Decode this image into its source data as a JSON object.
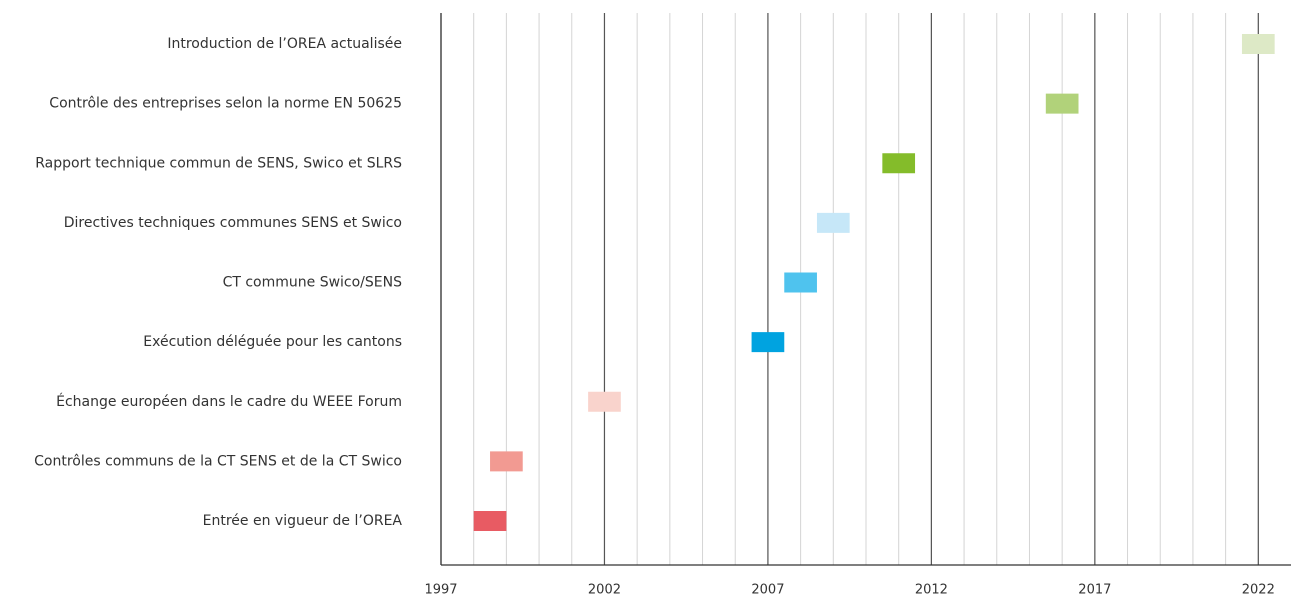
{
  "chart_data": {
    "type": "timeline",
    "categories": [
      "Introduction de l’OREA actualisée",
      "Contrôle des entreprises selon la norme EN 50625",
      "Rapport technique commun de SENS, Swico et SLRS",
      "Directives techniques communes SENS et Swico",
      "CT commune Swico/SENS",
      "Exécution déléguée pour les cantons",
      "Échange européen dans le cadre du WEEE Forum",
      "Contrôles communs de la CT SENS et de la CT Swico",
      "Entrée en vigueur de l’OREA"
    ],
    "start": [
      2021.5,
      2015.5,
      2010.5,
      2008.5,
      2007.5,
      2006.5,
      2001.5,
      1998.5,
      1998
    ],
    "end": [
      2022.5,
      2016.5,
      2011.5,
      2009.5,
      2008.5,
      2007.5,
      2002.5,
      1999.5,
      1999
    ],
    "colors": [
      "#dde9c6",
      "#b1d27a",
      "#84bc2a",
      "#c6e7f8",
      "#4fc3ee",
      "#00a3e0",
      "#f9d3cc",
      "#f29a92",
      "#e85b63"
    ],
    "xlim": [
      1997,
      2023
    ],
    "xticks": [
      1997,
      2002,
      2007,
      2012,
      2017,
      2022
    ],
    "grid": true
  }
}
